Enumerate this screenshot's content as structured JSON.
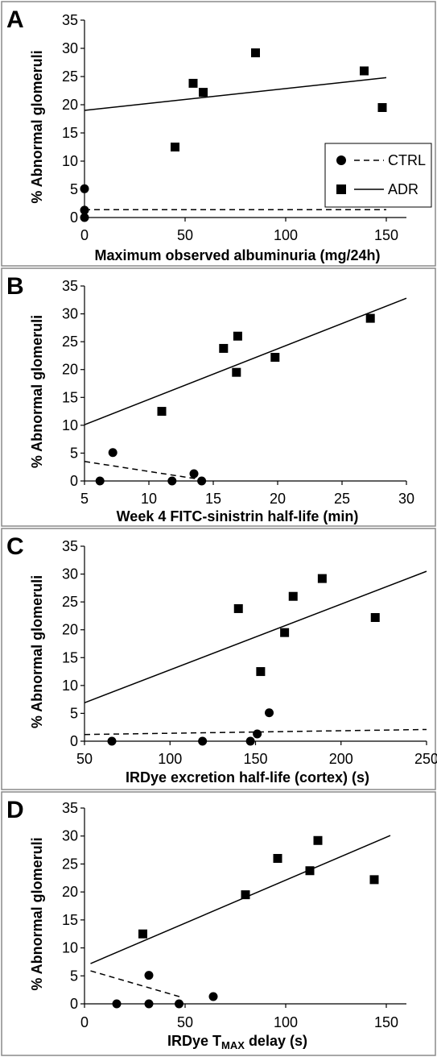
{
  "chart_data": [
    {
      "type": "scatter",
      "panel_label": "A",
      "xlabel": "Maximum observed albuminuria (mg/24h)",
      "ylabel": "% Abnormal glomeruli",
      "xlim": [
        0,
        160
      ],
      "ylim": [
        0,
        35
      ],
      "xticks": [
        0,
        50,
        100,
        150
      ],
      "yticks": [
        0,
        5,
        10,
        15,
        20,
        25,
        30,
        35
      ],
      "legend": {
        "placement": "right",
        "entries": [
          "CTRL",
          "ADR"
        ]
      },
      "series": [
        {
          "name": "CTRL",
          "marker": "circle",
          "line": "dashed",
          "x": [
            0,
            0,
            0
          ],
          "y": [
            5.1,
            1.3,
            0
          ],
          "trendline": {
            "x": [
              0,
              150
            ],
            "y": [
              1.4,
              1.4
            ]
          }
        },
        {
          "name": "ADR",
          "marker": "square",
          "line": "solid",
          "x": [
            45,
            54,
            59,
            85,
            139,
            148
          ],
          "y": [
            12.5,
            23.8,
            22.2,
            29.2,
            26.0,
            19.5
          ],
          "trendline": {
            "x": [
              0,
              150
            ],
            "y": [
              19.0,
              24.8
            ]
          }
        }
      ]
    },
    {
      "type": "scatter",
      "panel_label": "B",
      "xlabel": "Week 4 FITC-sinistrin half-life (min)",
      "ylabel": "% Abnormal glomeruli",
      "xlim": [
        5,
        30
      ],
      "ylim": [
        0,
        35
      ],
      "xticks": [
        5,
        10,
        15,
        20,
        25,
        30
      ],
      "yticks": [
        0,
        5,
        10,
        15,
        20,
        25,
        30,
        35
      ],
      "series": [
        {
          "name": "CTRL",
          "marker": "circle",
          "line": "dashed",
          "x": [
            6.2,
            7.2,
            11.8,
            13.5,
            14.1
          ],
          "y": [
            0,
            5.1,
            0,
            1.3,
            0
          ],
          "trendline": {
            "x": [
              5,
              14.5
            ],
            "y": [
              3.5,
              0.1
            ]
          }
        },
        {
          "name": "ADR",
          "marker": "square",
          "line": "solid",
          "x": [
            11.0,
            15.8,
            16.8,
            16.9,
            19.8,
            27.2
          ],
          "y": [
            12.5,
            23.8,
            19.5,
            26.0,
            22.2,
            29.2
          ],
          "trendline": {
            "x": [
              5,
              30
            ],
            "y": [
              10.1,
              32.8
            ]
          }
        }
      ]
    },
    {
      "type": "scatter",
      "panel_label": "C",
      "xlabel": "IRDye excretion half-life (cortex) (s)",
      "ylabel": "% Abnormal glomeruli",
      "xlim": [
        50,
        250
      ],
      "ylim": [
        0,
        35
      ],
      "xticks": [
        50,
        100,
        150,
        200,
        250
      ],
      "yticks": [
        0,
        5,
        10,
        15,
        20,
        25,
        30,
        35
      ],
      "series": [
        {
          "name": "CTRL",
          "marker": "circle",
          "line": "dashed",
          "x": [
            66,
            119,
            147,
            151,
            158
          ],
          "y": [
            0,
            0,
            0,
            1.3,
            5.1
          ],
          "trendline": {
            "x": [
              50,
              250
            ],
            "y": [
              1.2,
              2.1
            ]
          }
        },
        {
          "name": "ADR",
          "marker": "square",
          "line": "solid",
          "x": [
            140,
            153,
            167,
            172,
            189,
            220
          ],
          "y": [
            23.8,
            12.5,
            19.5,
            26.0,
            29.2,
            22.2
          ],
          "trendline": {
            "x": [
              50,
              250
            ],
            "y": [
              6.9,
              30.5
            ]
          }
        }
      ]
    },
    {
      "type": "scatter",
      "panel_label": "D",
      "xlabel": "IRDye T",
      "xlabel_subscript": "MAX",
      "xlabel_suffix": " delay (s)",
      "ylabel": "% Abnormal glomeruli",
      "xlim": [
        0,
        160
      ],
      "ylim": [
        0,
        35
      ],
      "xticks": [
        0,
        50,
        100,
        150
      ],
      "yticks": [
        0,
        5,
        10,
        15,
        20,
        25,
        30,
        35
      ],
      "series": [
        {
          "name": "CTRL",
          "marker": "circle",
          "line": "dashed",
          "x": [
            16,
            32,
            32,
            47,
            64
          ],
          "y": [
            0,
            5.1,
            0,
            0,
            1.3
          ],
          "trendline": {
            "x": [
              3,
              49
            ],
            "y": [
              5.9,
              1.1
            ]
          }
        },
        {
          "name": "ADR",
          "marker": "square",
          "line": "solid",
          "x": [
            29,
            80,
            96,
            112,
            116,
            144
          ],
          "y": [
            12.5,
            19.5,
            26.0,
            23.8,
            29.2,
            22.2
          ],
          "trendline": {
            "x": [
              3,
              152
            ],
            "y": [
              7.2,
              30.1
            ]
          }
        }
      ]
    }
  ]
}
